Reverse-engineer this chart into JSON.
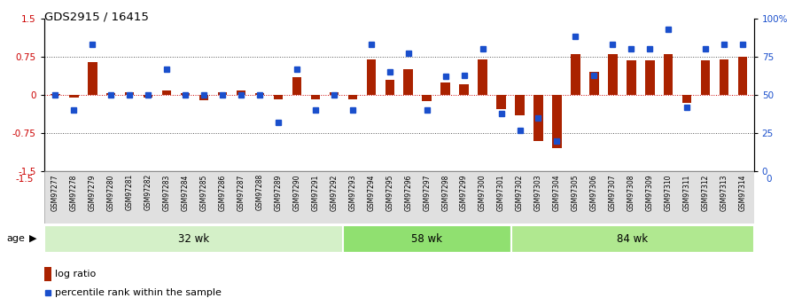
{
  "title": "GDS2915 / 16415",
  "samples": [
    "GSM97277",
    "GSM97278",
    "GSM97279",
    "GSM97280",
    "GSM97281",
    "GSM97282",
    "GSM97283",
    "GSM97284",
    "GSM97285",
    "GSM97286",
    "GSM97287",
    "GSM97288",
    "GSM97289",
    "GSM97290",
    "GSM97291",
    "GSM97292",
    "GSM97293",
    "GSM97294",
    "GSM97295",
    "GSM97296",
    "GSM97297",
    "GSM97298",
    "GSM97299",
    "GSM97300",
    "GSM97301",
    "GSM97302",
    "GSM97303",
    "GSM97304",
    "GSM97305",
    "GSM97306",
    "GSM97307",
    "GSM97308",
    "GSM97309",
    "GSM97310",
    "GSM97311",
    "GSM97312",
    "GSM97313",
    "GSM97314"
  ],
  "log_ratio": [
    0.02,
    -0.06,
    0.65,
    0.03,
    0.05,
    -0.05,
    0.08,
    0.03,
    -0.1,
    0.05,
    0.08,
    0.04,
    -0.08,
    0.35,
    -0.08,
    0.05,
    -0.08,
    0.7,
    0.3,
    0.5,
    -0.12,
    0.25,
    0.2,
    0.7,
    -0.28,
    -0.4,
    -0.9,
    -1.05,
    0.8,
    0.45,
    0.8,
    0.68,
    0.68,
    0.8,
    -0.15,
    0.68,
    0.7,
    0.75
  ],
  "percentile_rank": [
    50,
    40,
    83,
    50,
    50,
    50,
    67,
    50,
    50,
    50,
    50,
    50,
    32,
    67,
    40,
    50,
    40,
    83,
    65,
    77,
    40,
    62,
    63,
    80,
    38,
    27,
    35,
    20,
    88,
    63,
    83,
    80,
    80,
    93,
    42,
    80,
    83,
    83
  ],
  "groups": [
    {
      "label": "32 wk",
      "start": 0,
      "end": 16,
      "color": "#d4f0c8"
    },
    {
      "label": "58 wk",
      "start": 16,
      "end": 25,
      "color": "#90e070"
    },
    {
      "label": "84 wk",
      "start": 25,
      "end": 38,
      "color": "#b0e890"
    }
  ],
  "bar_color": "#aa2200",
  "dot_color": "#1a4fcc",
  "ylim_left": [
    -1.5,
    1.5
  ],
  "ylim_right": [
    0,
    100
  ],
  "yticks_left": [
    -1.5,
    -0.75,
    0,
    0.75,
    1.5
  ],
  "yticks_right": [
    0,
    25,
    50,
    75,
    100
  ],
  "hlines": [
    -0.75,
    0,
    0.75
  ],
  "background_color": "#ffffff"
}
